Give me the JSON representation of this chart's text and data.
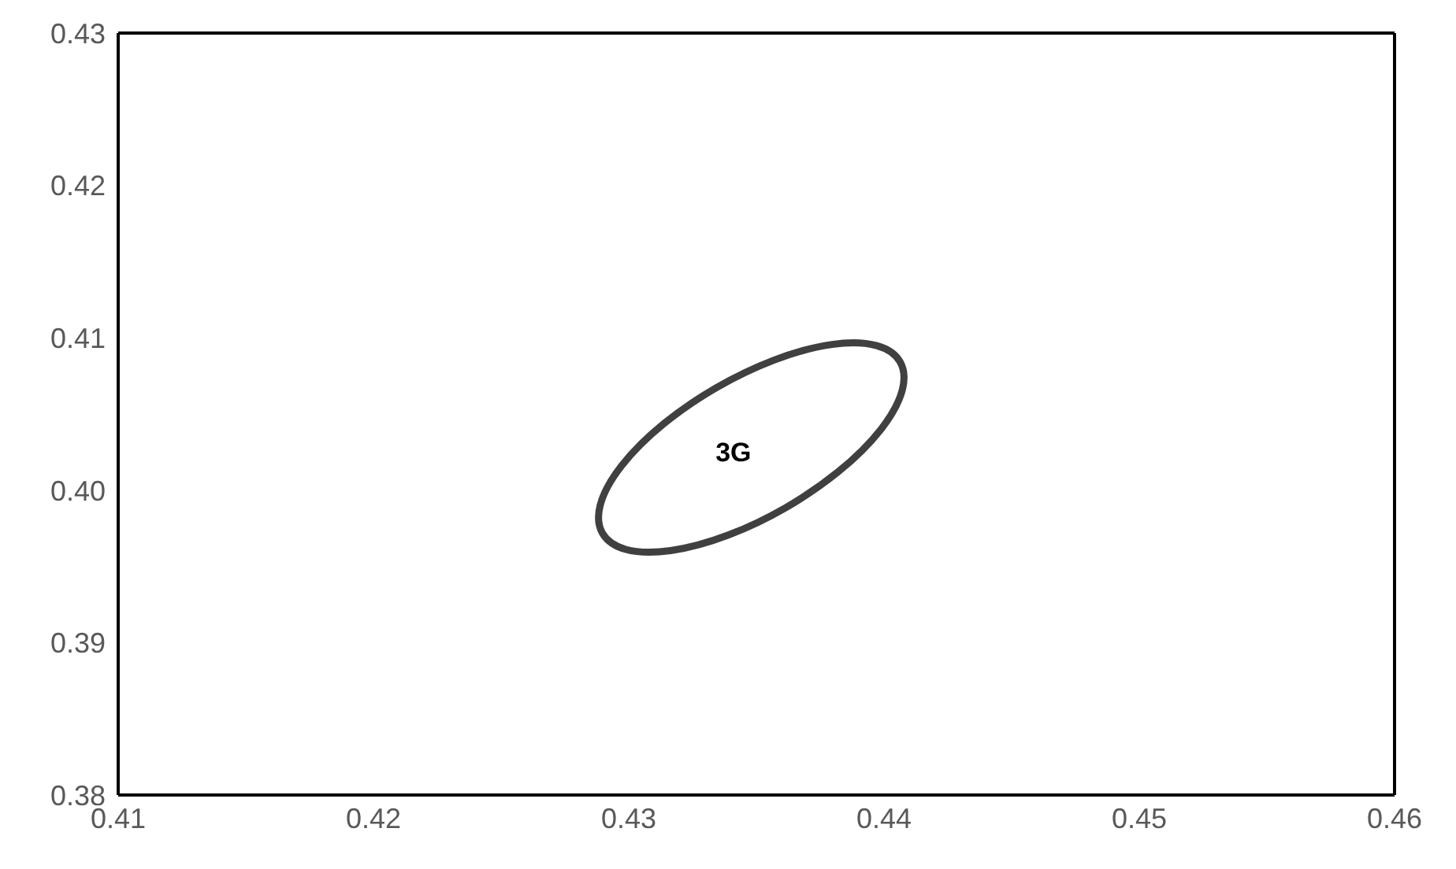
{
  "chart_data": {
    "type": "line",
    "xlim": [
      0.41,
      0.46
    ],
    "xticks": [
      0.41,
      0.42,
      0.43,
      0.44,
      0.45,
      0.46
    ],
    "ylim": [
      0.38,
      0.43
    ],
    "yticks": [
      0.38,
      0.39,
      {
        "value": 0.4,
        "label": "0.40"
      },
      0.41,
      0.42,
      0.43
    ],
    "grid": false,
    "annotations": [
      "3G"
    ]
  }
}
